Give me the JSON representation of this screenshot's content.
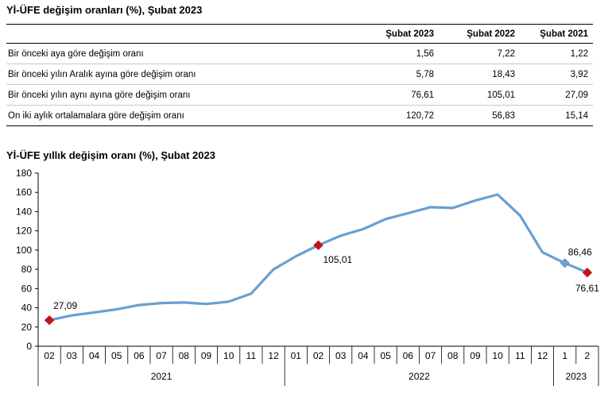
{
  "table": {
    "title": "Yİ-ÜFE değişim oranları (%), Şubat 2023",
    "columns": [
      "",
      "Şubat 2023",
      "Şubat 2022",
      "Şubat 2021"
    ],
    "rows": [
      {
        "label": "Bir önceki aya göre değişim oranı",
        "values": [
          "1,56",
          "7,22",
          "1,22"
        ]
      },
      {
        "label": "Bir önceki yılın Aralık ayına göre değişim oranı",
        "values": [
          "5,78",
          "18,43",
          "3,92"
        ]
      },
      {
        "label": "Bir önceki yılın aynı ayına göre değişim oranı",
        "values": [
          "76,61",
          "105,01",
          "27,09"
        ]
      },
      {
        "label": "On iki aylık ortalamalara göre değişim oranı",
        "values": [
          "120,72",
          "56,83",
          "15,14"
        ]
      }
    ]
  },
  "chart_data": {
    "type": "line",
    "title": "Yİ-ÜFE yıllık değişim oranı (%), Şubat 2023",
    "xlabel": "",
    "ylabel": "",
    "ylim": [
      0,
      180
    ],
    "yticks": [
      0,
      20,
      40,
      60,
      80,
      100,
      120,
      140,
      160,
      180
    ],
    "categories": [
      "02",
      "03",
      "04",
      "05",
      "06",
      "07",
      "08",
      "09",
      "10",
      "11",
      "12",
      "01",
      "02",
      "03",
      "04",
      "05",
      "06",
      "07",
      "08",
      "09",
      "10",
      "11",
      "12",
      "1",
      "2"
    ],
    "year_groups": [
      {
        "label": "2021",
        "count": 11
      },
      {
        "label": "2022",
        "count": 12
      },
      {
        "label": "2023",
        "count": 2
      }
    ],
    "series": [
      {
        "color": "#6a9fcf",
        "values": [
          27.09,
          32.0,
          35.17,
          38.33,
          42.89,
          44.92,
          45.52,
          43.96,
          46.31,
          54.62,
          79.89,
          93.53,
          105.01,
          114.97,
          121.82,
          132.16,
          138.31,
          144.61,
          143.75,
          151.5,
          157.69,
          136.02,
          97.72,
          86.46,
          76.61
        ]
      }
    ],
    "markers": [
      {
        "index": 0,
        "label": "27,09",
        "color": "#c0141c",
        "shape": "diamond"
      },
      {
        "index": 12,
        "label": "105,01",
        "color": "#c0141c",
        "shape": "diamond"
      },
      {
        "index": 23,
        "label": "86,46",
        "color": "#6a9fcf",
        "shape": "diamond"
      },
      {
        "index": 24,
        "label": "76,61",
        "color": "#c0141c",
        "shape": "diamond"
      }
    ]
  }
}
